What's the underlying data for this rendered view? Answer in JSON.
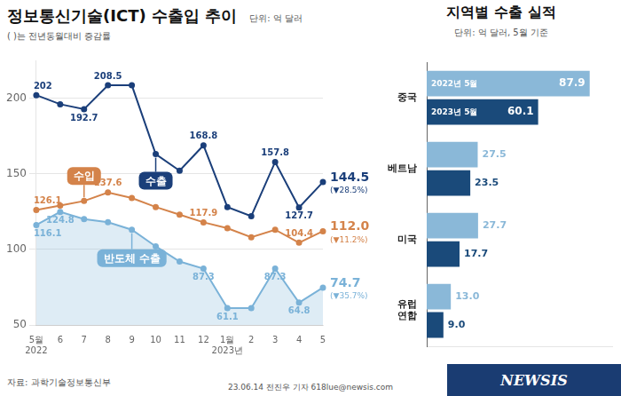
{
  "chart_data": [
    {
      "type": "line",
      "title": "정보통신기술(ICT) 수출입 추이",
      "subtitle": "단위: 억 달러",
      "note": "( )는 전년동월대비 증감률",
      "source": "자료: 과학기술정보통신부",
      "footer": "23.06.14 전진우 기자 618lue@newsis.com",
      "logo": "NEWSIS",
      "categories": [
        "5월\n2022",
        "6",
        "7",
        "8",
        "9",
        "10",
        "11",
        "12",
        "1월\n2023년",
        "2",
        "3",
        "4",
        "5"
      ],
      "series": [
        {
          "name": "수출",
          "color": "#1b3f7a",
          "marker": "circle",
          "values": [
            202,
            196,
            192.7,
            208.5,
            208.5,
            163,
            152,
            168.8,
            128,
            122,
            157.8,
            127.7,
            144.5
          ],
          "value_labels": [
            "202",
            null,
            "192.7",
            "208.5",
            null,
            null,
            null,
            "168.8",
            null,
            null,
            "157.8",
            "127.7",
            null
          ],
          "end_value_label": "144.5",
          "end_change_label": "(▼28.5%)"
        },
        {
          "name": "수입",
          "color": "#d4834a",
          "marker": "circle",
          "values": [
            126.1,
            129,
            132,
            137.6,
            134,
            128,
            123,
            117.9,
            114,
            108,
            113,
            104.4,
            112.0
          ],
          "value_labels": [
            "126.1",
            null,
            null,
            "137.6",
            null,
            null,
            null,
            "117.9",
            null,
            null,
            null,
            "104.4",
            null
          ],
          "end_value_label": "112.0",
          "end_change_label": "(▼11.2%)"
        },
        {
          "name": "반도체 수출",
          "color": "#7ab2d8",
          "marker": "circle",
          "type": "area",
          "values": [
            116.1,
            124.8,
            120,
            118,
            113,
            102,
            92,
            87.3,
            61.1,
            61.1,
            87.3,
            64.8,
            74.7
          ],
          "value_labels": [
            "116.1",
            "124.8",
            null,
            null,
            null,
            null,
            null,
            "87.3",
            "61.1",
            null,
            "87.3",
            "64.8",
            null
          ],
          "end_value_label": "74.7",
          "end_change_label": "(▼35.7%)"
        }
      ],
      "ylim": [
        50,
        225
      ],
      "yticks": [
        50,
        100,
        150,
        200
      ],
      "grid": true,
      "data_labels": true
    },
    {
      "type": "bar",
      "orientation": "horizontal",
      "title": "지역별 수출 실적",
      "subtitle": "단위: 억 달러, 5월 기준",
      "categories": [
        "중국",
        "베트남",
        "미국",
        "유럽\n연합"
      ],
      "series": [
        {
          "name": "2022년 5월",
          "color": "#8ab8d8",
          "values": [
            87.9,
            27.5,
            27.7,
            13.0
          ],
          "value_labels": [
            "87.9",
            "27.5",
            "27.7",
            "13.0"
          ]
        },
        {
          "name": "2023년 5월",
          "color": "#1a4a7a",
          "values": [
            60.1,
            23.5,
            17.7,
            9.0
          ],
          "value_labels": [
            "60.1",
            "23.5",
            "17.7",
            "9.0"
          ]
        }
      ],
      "xlim": [
        0,
        100
      ],
      "grid": false,
      "tick_labels": "y",
      "data_labels": true
    }
  ]
}
